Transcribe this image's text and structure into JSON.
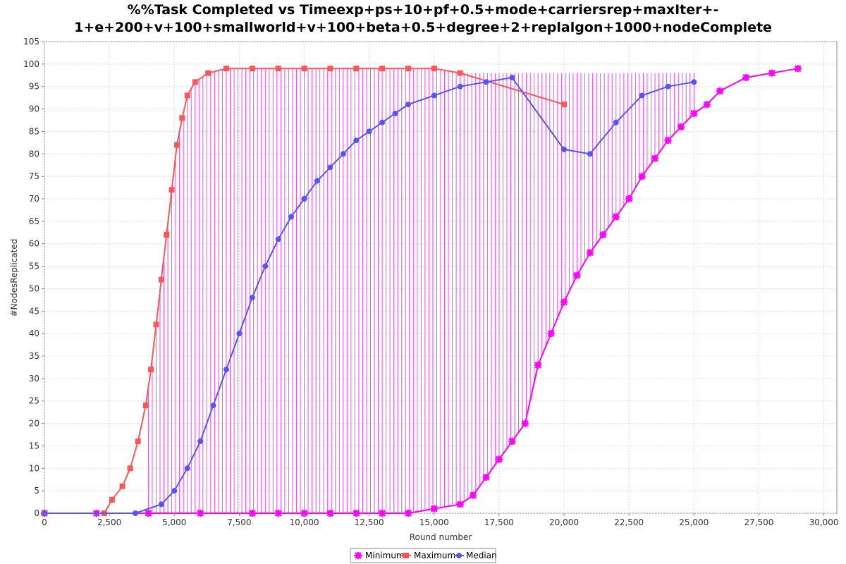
{
  "chart_data": {
    "type": "line",
    "title_lines": [
      "%%Task Completed vs Timeexp+ps+10+pf+0.5+mode+carriersrep+maxIter+-",
      "1+e+200+v+100+smallworld+v+100+beta+0.5+degree+2+replalgon+1000+nodeComplete"
    ],
    "xlabel": "Round number",
    "ylabel": "#NodesReplicated",
    "xlim": [
      0,
      30500
    ],
    "ylim": [
      0,
      105
    ],
    "xticks": [
      0,
      2500,
      5000,
      7500,
      10000,
      12500,
      15000,
      17500,
      20000,
      22500,
      25000,
      27500,
      30000
    ],
    "xtick_labels": [
      "0",
      "2,500",
      "5,000",
      "7,500",
      "10,000",
      "12,500",
      "15,000",
      "17,500",
      "20,000",
      "22,500",
      "25,000",
      "27,500",
      "30,000"
    ],
    "yticks": [
      0,
      5,
      10,
      15,
      20,
      25,
      30,
      35,
      40,
      45,
      50,
      55,
      60,
      65,
      70,
      75,
      80,
      85,
      90,
      95,
      100,
      105
    ],
    "ytick_labels": [
      "0",
      "5",
      "10",
      "15",
      "20",
      "25",
      "30",
      "35",
      "40",
      "45",
      "50",
      "55",
      "60",
      "65",
      "70",
      "75",
      "80",
      "85",
      "90",
      "95",
      "100",
      "105"
    ],
    "grid": true,
    "legend_position": "bottom-center",
    "series": [
      {
        "name": "Minimum",
        "color": "#ff00ff",
        "marker": "x-star",
        "points": [
          [
            0,
            0
          ],
          [
            2000,
            0
          ],
          [
            4000,
            0
          ],
          [
            6000,
            0
          ],
          [
            8000,
            0
          ],
          [
            9000,
            0
          ],
          [
            10000,
            0
          ],
          [
            11000,
            0
          ],
          [
            12000,
            0
          ],
          [
            13000,
            0
          ],
          [
            14000,
            0
          ],
          [
            15000,
            1
          ],
          [
            16000,
            2
          ],
          [
            16500,
            4
          ],
          [
            17000,
            8
          ],
          [
            17500,
            12
          ],
          [
            18000,
            16
          ],
          [
            18500,
            20
          ],
          [
            19000,
            33
          ],
          [
            19500,
            40
          ],
          [
            20000,
            47
          ],
          [
            20500,
            53
          ],
          [
            21000,
            58
          ],
          [
            21500,
            62
          ],
          [
            22000,
            66
          ],
          [
            22500,
            70
          ],
          [
            23000,
            75
          ],
          [
            23500,
            79
          ],
          [
            24000,
            83
          ],
          [
            24500,
            86
          ],
          [
            25000,
            89
          ],
          [
            25500,
            91
          ],
          [
            26000,
            94
          ],
          [
            27000,
            97
          ],
          [
            28000,
            98
          ],
          [
            29000,
            99
          ]
        ]
      },
      {
        "name": "Maximum",
        "color": "#ff5555",
        "marker": "square",
        "points": [
          [
            0,
            0
          ],
          [
            2300,
            0
          ],
          [
            2600,
            3
          ],
          [
            3000,
            6
          ],
          [
            3300,
            10
          ],
          [
            3600,
            16
          ],
          [
            3900,
            24
          ],
          [
            4100,
            32
          ],
          [
            4300,
            42
          ],
          [
            4500,
            52
          ],
          [
            4700,
            62
          ],
          [
            4900,
            72
          ],
          [
            5100,
            82
          ],
          [
            5300,
            88
          ],
          [
            5500,
            93
          ],
          [
            5800,
            96
          ],
          [
            6300,
            98
          ],
          [
            7000,
            99
          ],
          [
            8000,
            99
          ],
          [
            9000,
            99
          ],
          [
            10000,
            99
          ],
          [
            11000,
            99
          ],
          [
            12000,
            99
          ],
          [
            13000,
            99
          ],
          [
            14000,
            99
          ],
          [
            15000,
            99
          ],
          [
            16000,
            98
          ],
          [
            20000,
            91
          ]
        ]
      },
      {
        "name": "Median",
        "color": "#5555ff",
        "marker": "circle",
        "points": [
          [
            0,
            0
          ],
          [
            3500,
            0
          ],
          [
            4500,
            2
          ],
          [
            5000,
            5
          ],
          [
            5500,
            10
          ],
          [
            6000,
            16
          ],
          [
            6500,
            24
          ],
          [
            7000,
            32
          ],
          [
            7500,
            40
          ],
          [
            8000,
            48
          ],
          [
            8500,
            55
          ],
          [
            9000,
            61
          ],
          [
            9500,
            66
          ],
          [
            10000,
            70
          ],
          [
            10500,
            74
          ],
          [
            11000,
            77
          ],
          [
            11500,
            80
          ],
          [
            12000,
            83
          ],
          [
            12500,
            85
          ],
          [
            13000,
            87
          ],
          [
            13500,
            89
          ],
          [
            14000,
            91
          ],
          [
            15000,
            93
          ],
          [
            16000,
            95
          ],
          [
            17000,
            96
          ],
          [
            18000,
            97
          ],
          [
            20000,
            81
          ],
          [
            21000,
            80
          ],
          [
            22000,
            87
          ],
          [
            23000,
            93
          ],
          [
            24000,
            95
          ],
          [
            25000,
            96
          ]
        ]
      }
    ]
  }
}
